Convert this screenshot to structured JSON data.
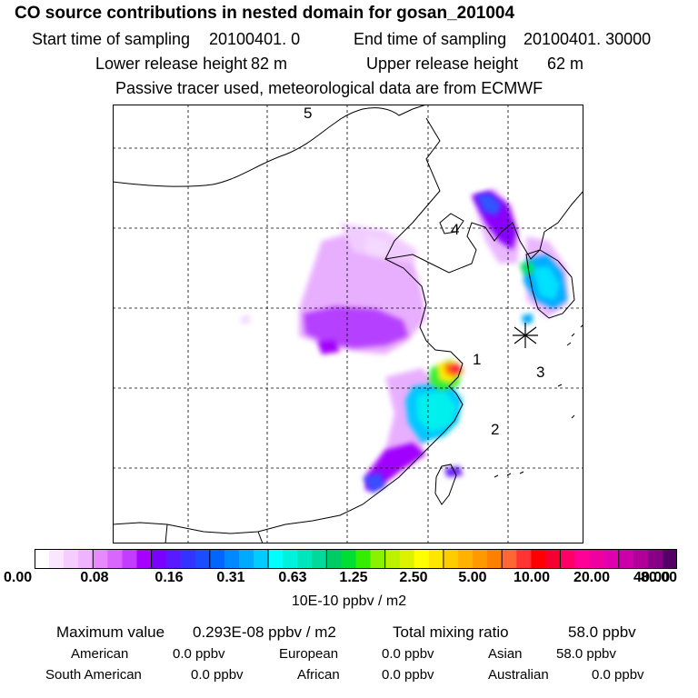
{
  "header": {
    "title": "CO  source contributions in nested domain for gosan_201004",
    "start_label": "Start time of sampling",
    "start_value": "20100401.     0",
    "end_label": "End time of sampling",
    "end_value": "20100401. 30000",
    "lower_label": "Lower release height",
    "lower_value": "82 m",
    "upper_label": "Upper release height",
    "upper_value": "62 m",
    "note": "Passive tracer used, meteorological data are from ECMWF"
  },
  "map": {
    "region_labels": [
      "1",
      "2",
      "3",
      "4",
      "5"
    ],
    "station": "gosan",
    "station_marker": "asterisk-icon"
  },
  "colorbar": {
    "ticks": [
      "0.00",
      "0.08",
      "0.16",
      "0.31",
      "0.63",
      "1.25",
      "2.50",
      "5.00",
      "10.00",
      "20.00",
      "40.00",
      "80.00"
    ],
    "unit": "10E-10 ppbv / m2",
    "colors": [
      [
        "#ffffff",
        "#fbe6ff",
        "#f6ccff",
        "#f0b3ff"
      ],
      [
        "#e88aff",
        "#d966ff",
        "#c23dff",
        "#a800ff"
      ],
      [
        "#7a00ff",
        "#5a1aff",
        "#3333ff",
        "#1a4dff"
      ],
      [
        "#0066ff",
        "#0088ff",
        "#00aaff",
        "#00ccff"
      ],
      [
        "#00ffff",
        "#00f2dd",
        "#00e6bb",
        "#00d99a"
      ],
      [
        "#00cc66",
        "#00dd33",
        "#33ee00",
        "#88f200"
      ],
      [
        "#bbf200",
        "#ddf200",
        "#ffff00",
        "#ffe600"
      ],
      [
        "#ffcc00",
        "#ffb300",
        "#ff9900",
        "#ff8000"
      ],
      [
        "#ff6633",
        "#ff3333",
        "#ff0000",
        "#f50030"
      ],
      [
        "#ff0066",
        "#ff0099",
        "#f000a0",
        "#e000b0"
      ],
      [
        "#cc00aa",
        "#b00099",
        "#880088",
        "#550066"
      ]
    ]
  },
  "summary": {
    "max_label": "Maximum value",
    "max_value": "0.293E-08 ppbv / m2",
    "total_label": "Total mixing ratio",
    "total_value": "58.0 ppbv",
    "regions": [
      {
        "name": "American",
        "value": "0.0 ppbv"
      },
      {
        "name": "European",
        "value": "0.0 ppbv"
      },
      {
        "name": "Asian",
        "value": "58.0 ppbv"
      },
      {
        "name": "South American",
        "value": "0.0 ppbv"
      },
      {
        "name": "African",
        "value": "0.0 ppbv"
      },
      {
        "name": "Australian",
        "value": "0.0 ppbv"
      }
    ]
  }
}
